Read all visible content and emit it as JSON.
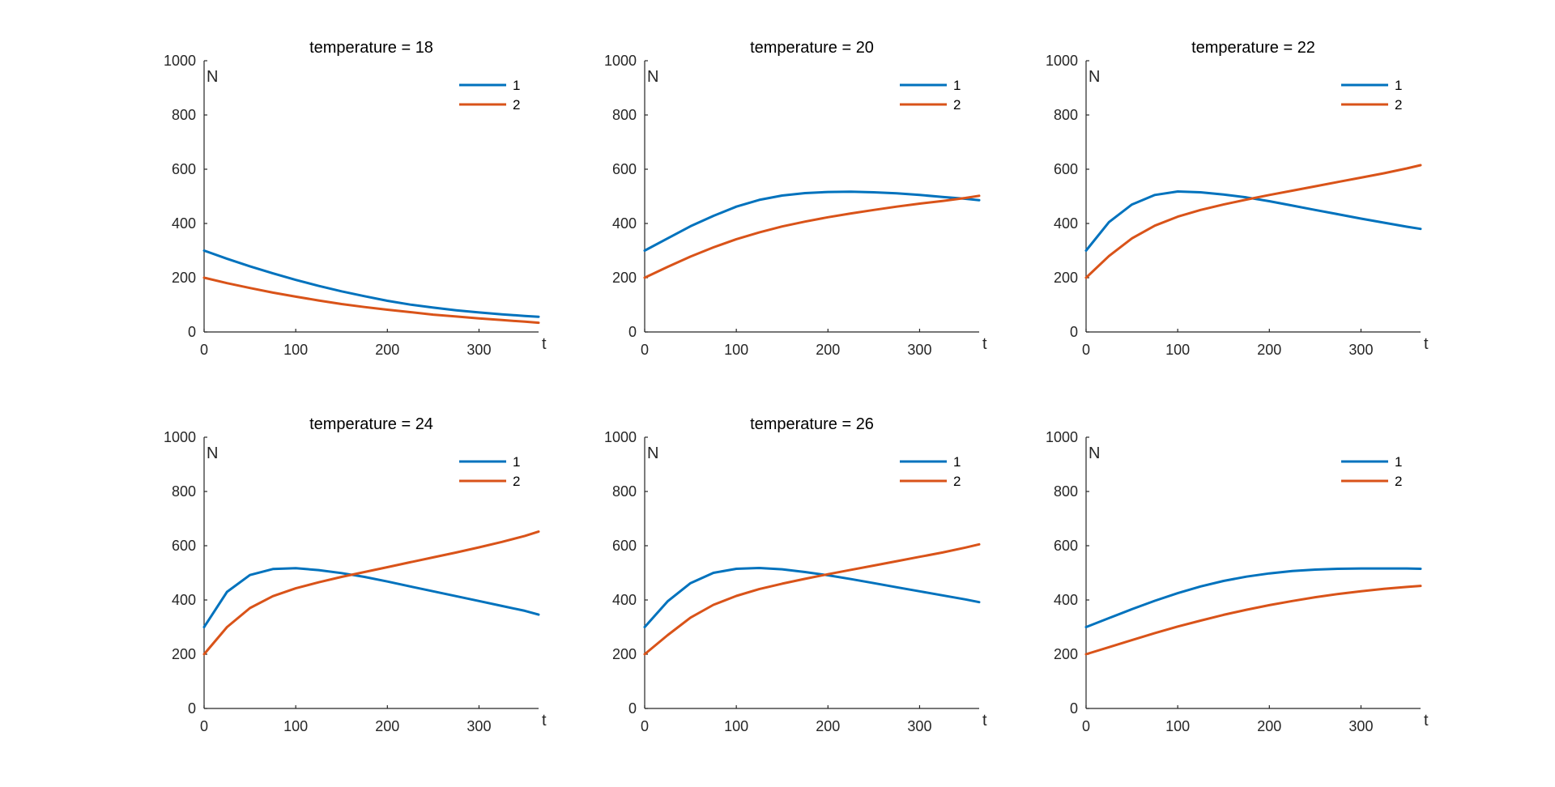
{
  "colors": {
    "series1": "#0072BD",
    "series2": "#D95319",
    "axis": "#262626",
    "background": "#FFFFFF"
  },
  "chart_data": [
    {
      "type": "line",
      "title": "temperature = 18",
      "xlabel": "t",
      "ylabel": "N",
      "xlim": [
        0,
        365
      ],
      "ylim": [
        0,
        1000
      ],
      "xticks": [
        0,
        100,
        200,
        300
      ],
      "yticks": [
        0,
        200,
        400,
        600,
        800,
        1000
      ],
      "grid": false,
      "legend": "top-right",
      "x": [
        0,
        25,
        50,
        75,
        100,
        125,
        150,
        175,
        200,
        225,
        250,
        275,
        300,
        325,
        350,
        365
      ],
      "series": [
        {
          "name": "1",
          "values": [
            300,
            270,
            242,
            216,
            192,
            170,
            150,
            132,
            115,
            101,
            90,
            80,
            72,
            65,
            59,
            56
          ]
        },
        {
          "name": "2",
          "values": [
            200,
            180,
            162,
            145,
            130,
            116,
            103,
            92,
            82,
            73,
            64,
            57,
            50,
            44,
            38,
            34
          ]
        }
      ]
    },
    {
      "type": "line",
      "title": "temperature = 20",
      "xlabel": "t",
      "ylabel": "N",
      "xlim": [
        0,
        365
      ],
      "ylim": [
        0,
        1000
      ],
      "xticks": [
        0,
        100,
        200,
        300
      ],
      "yticks": [
        0,
        200,
        400,
        600,
        800,
        1000
      ],
      "grid": false,
      "legend": "top-right",
      "x": [
        0,
        25,
        50,
        75,
        100,
        125,
        150,
        175,
        200,
        225,
        250,
        275,
        300,
        325,
        350,
        365
      ],
      "series": [
        {
          "name": "1",
          "values": [
            300,
            345,
            390,
            428,
            462,
            487,
            503,
            512,
            516,
            517,
            515,
            511,
            505,
            498,
            491,
            486
          ]
        },
        {
          "name": "2",
          "values": [
            200,
            240,
            278,
            312,
            342,
            367,
            389,
            407,
            423,
            437,
            450,
            462,
            473,
            483,
            494,
            502
          ]
        }
      ]
    },
    {
      "type": "line",
      "title": "temperature = 22",
      "xlabel": "t",
      "ylabel": "N",
      "xlim": [
        0,
        365
      ],
      "ylim": [
        0,
        1000
      ],
      "xticks": [
        0,
        100,
        200,
        300
      ],
      "yticks": [
        0,
        200,
        400,
        600,
        800,
        1000
      ],
      "grid": false,
      "legend": "top-right",
      "x": [
        0,
        25,
        50,
        75,
        100,
        125,
        150,
        175,
        200,
        225,
        250,
        275,
        300,
        325,
        350,
        365
      ],
      "series": [
        {
          "name": "1",
          "values": [
            300,
            405,
            470,
            505,
            518,
            515,
            507,
            496,
            482,
            466,
            450,
            434,
            418,
            403,
            388,
            380
          ]
        },
        {
          "name": "2",
          "values": [
            200,
            280,
            345,
            392,
            425,
            450,
            470,
            488,
            505,
            521,
            537,
            553,
            569,
            585,
            603,
            615
          ]
        }
      ]
    },
    {
      "type": "line",
      "title": "temperature = 24",
      "xlabel": "t",
      "ylabel": "N",
      "xlim": [
        0,
        365
      ],
      "ylim": [
        0,
        1000
      ],
      "xticks": [
        0,
        100,
        200,
        300
      ],
      "yticks": [
        0,
        200,
        400,
        600,
        800,
        1000
      ],
      "grid": false,
      "legend": "top-right",
      "x": [
        0,
        25,
        50,
        75,
        100,
        125,
        150,
        175,
        200,
        225,
        250,
        275,
        300,
        325,
        350,
        365
      ],
      "series": [
        {
          "name": "1",
          "values": [
            300,
            430,
            492,
            514,
            517,
            510,
            499,
            485,
            468,
            450,
            432,
            414,
            396,
            378,
            360,
            346
          ]
        },
        {
          "name": "2",
          "values": [
            200,
            300,
            370,
            414,
            443,
            465,
            485,
            503,
            521,
            539,
            557,
            575,
            594,
            614,
            636,
            652
          ]
        }
      ]
    },
    {
      "type": "line",
      "title": "temperature = 26",
      "xlabel": "t",
      "ylabel": "N",
      "xlim": [
        0,
        365
      ],
      "ylim": [
        0,
        1000
      ],
      "xticks": [
        0,
        100,
        200,
        300
      ],
      "yticks": [
        0,
        200,
        400,
        600,
        800,
        1000
      ],
      "grid": false,
      "legend": "top-right",
      "x": [
        0,
        25,
        50,
        75,
        100,
        125,
        150,
        175,
        200,
        225,
        250,
        275,
        300,
        325,
        350,
        365
      ],
      "series": [
        {
          "name": "1",
          "values": [
            300,
            395,
            462,
            500,
            515,
            518,
            513,
            503,
            491,
            477,
            462,
            447,
            432,
            417,
            402,
            392
          ]
        },
        {
          "name": "2",
          "values": [
            200,
            270,
            335,
            382,
            415,
            440,
            460,
            478,
            495,
            511,
            527,
            543,
            559,
            575,
            593,
            605
          ]
        }
      ]
    },
    {
      "type": "line",
      "title": "",
      "xlabel": "t",
      "ylabel": "N",
      "xlim": [
        0,
        365
      ],
      "ylim": [
        0,
        1000
      ],
      "xticks": [
        0,
        100,
        200,
        300
      ],
      "yticks": [
        0,
        200,
        400,
        600,
        800,
        1000
      ],
      "grid": false,
      "legend": "top-right",
      "x": [
        0,
        25,
        50,
        75,
        100,
        125,
        150,
        175,
        200,
        225,
        250,
        275,
        300,
        325,
        350,
        365
      ],
      "series": [
        {
          "name": "1",
          "values": [
            300,
            333,
            366,
            397,
            425,
            450,
            470,
            486,
            498,
            507,
            512,
            515,
            516,
            516,
            516,
            515
          ]
        },
        {
          "name": "2",
          "values": [
            200,
            226,
            252,
            278,
            302,
            324,
            345,
            364,
            381,
            396,
            410,
            422,
            432,
            441,
            448,
            452
          ]
        }
      ]
    }
  ]
}
